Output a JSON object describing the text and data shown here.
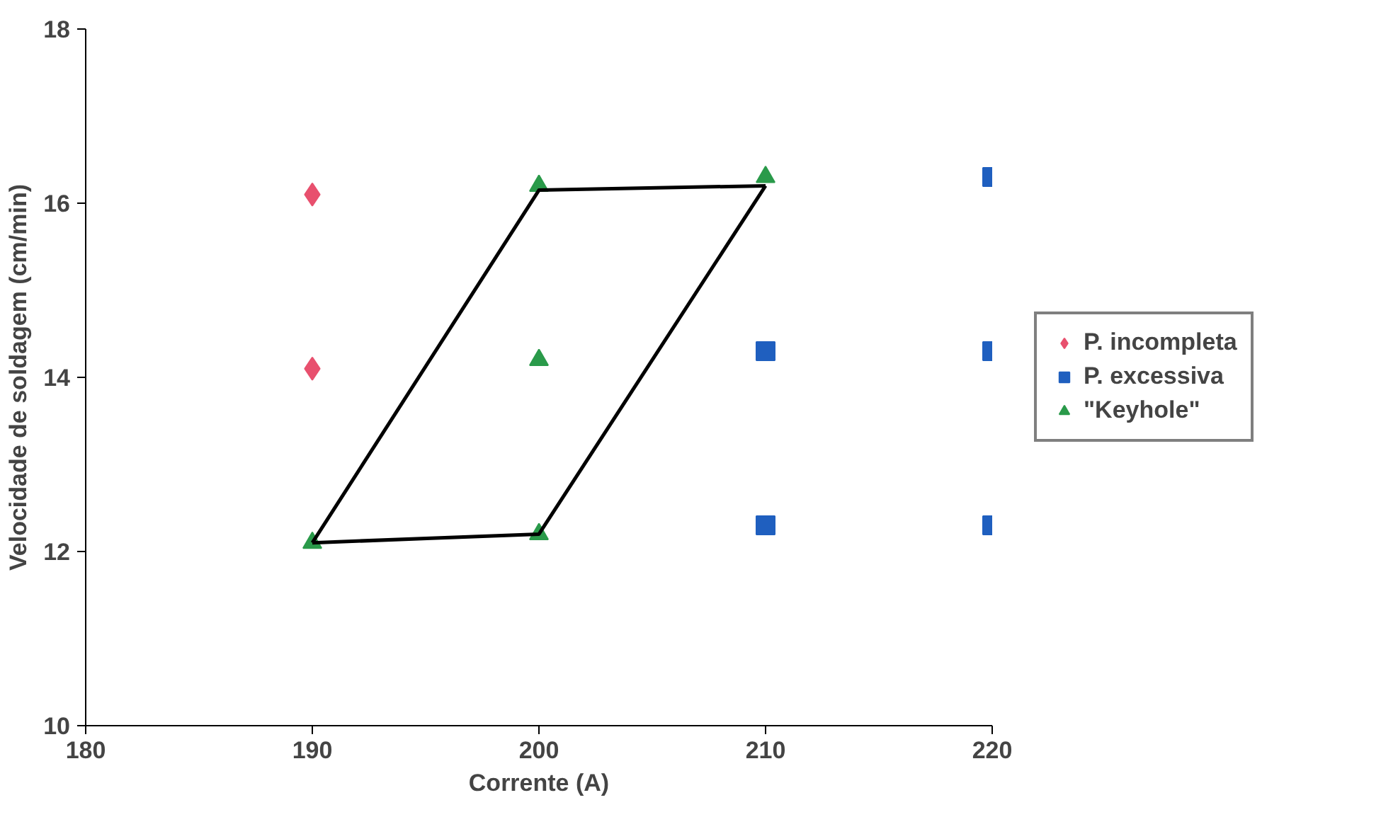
{
  "chart_data": {
    "type": "scatter",
    "xlabel": "Corrente (A)",
    "ylabel": "Velocidade de soldagem (cm/min)",
    "xlim": [
      180,
      220
    ],
    "xticks": [
      180,
      190,
      200,
      210,
      220
    ],
    "ylim": [
      10,
      18
    ],
    "yticks": [
      10,
      12,
      14,
      16,
      18
    ],
    "grid": false,
    "legend": "right",
    "series": [
      {
        "name": "P. incompleta",
        "marker": "diamond",
        "color": "#e8506e",
        "x": [
          190,
          190
        ],
        "values": [
          16.1,
          14.1
        ]
      },
      {
        "name": "P. excessiva",
        "marker": "square",
        "color": "#1f5fbf",
        "x": [
          210,
          210,
          220,
          220,
          220
        ],
        "values": [
          14.3,
          12.3,
          16.3,
          14.3,
          12.3
        ]
      },
      {
        "name": "\"Keyhole\"",
        "marker": "triangle",
        "color": "#2a9a4a",
        "x": [
          190,
          200,
          200,
          200,
          210
        ],
        "values": [
          12.1,
          16.2,
          14.2,
          12.2,
          16.3
        ]
      },
      {
        "type": "line",
        "marker": "none",
        "line_style": "solid",
        "color": "#000000",
        "x": [
          190,
          200,
          210
        ],
        "values": [
          12.1,
          16.15,
          16.2
        ]
      },
      {
        "type": "line",
        "marker": "none",
        "line_style": "solid",
        "color": "#000000",
        "x": [
          190,
          200,
          210
        ],
        "values": [
          12.1,
          12.2,
          16.2
        ]
      }
    ]
  }
}
